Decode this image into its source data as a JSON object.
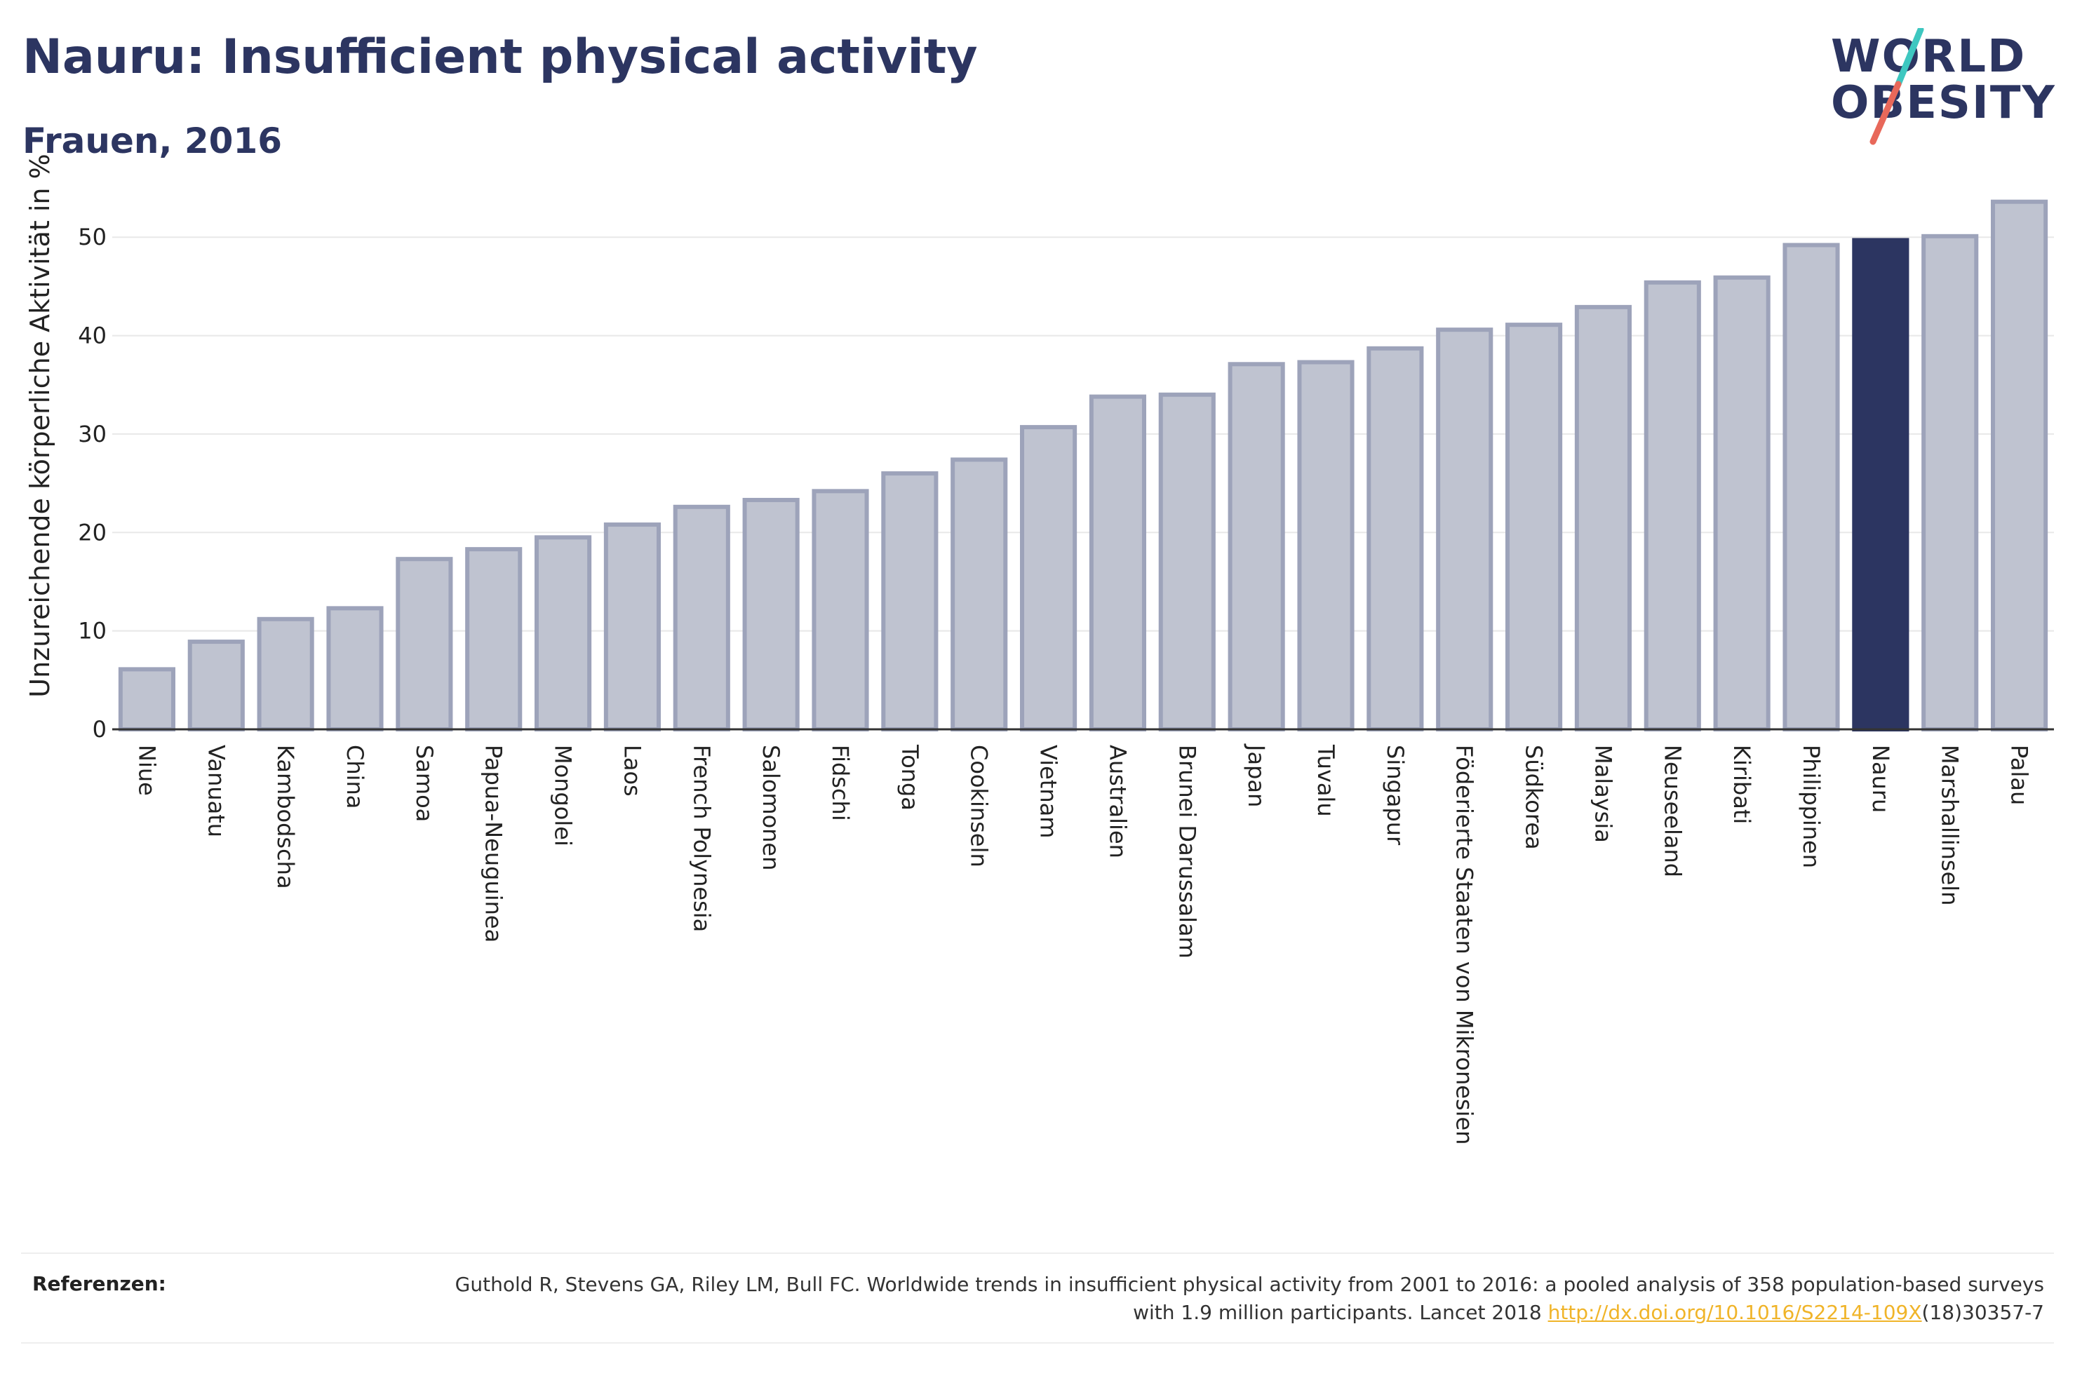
{
  "header": {
    "title": "Nauru: Insufficient physical activity",
    "subtitle": "Frauen, 2016"
  },
  "logo": {
    "line1": "WORLD",
    "line2": "OBESITY",
    "slash_colors": [
      "#3ec7c0",
      "#e8685a"
    ]
  },
  "colors": {
    "highlight": "#2c3561",
    "bar_fill": "#bfc3d0",
    "bar_stroke": "#9da3ba",
    "grid": "#e8e8e8",
    "axis": "#333333"
  },
  "chart_data": {
    "type": "bar",
    "title": "Nauru: Insufficient physical activity",
    "subtitle": "Frauen, 2016",
    "xlabel": "",
    "ylabel": "Unzureichende körperliche Aktivität in %",
    "ylim": [
      0,
      56
    ],
    "yticks": [
      0,
      10,
      20,
      30,
      40,
      50
    ],
    "grid": true,
    "highlight": "Nauru",
    "categories": [
      "Niue",
      "Vanuatu",
      "Kambodscha",
      "China",
      "Samoa",
      "Papua-Neuguinea",
      "Mongolei",
      "Laos",
      "French Polynesia",
      "Salomonen",
      "Fidschi",
      "Tonga",
      "Cookinseln",
      "Vietnam",
      "Australien",
      "Brunei Darussalam",
      "Japan",
      "Tuvalu",
      "Singapur",
      "Föderierte Staaten von Mikronesien",
      "Südkorea",
      "Malaysia",
      "Neuseeland",
      "Kiribati",
      "Philippinen",
      "Nauru",
      "Marshallinseln",
      "Palau"
    ],
    "values": [
      6.1,
      8.9,
      11.2,
      12.3,
      17.3,
      18.3,
      19.5,
      20.8,
      22.6,
      23.3,
      24.2,
      26.0,
      27.4,
      30.7,
      33.8,
      34.0,
      37.1,
      37.3,
      38.7,
      40.6,
      41.1,
      42.9,
      45.4,
      45.9,
      49.2,
      49.7,
      50.1,
      53.6
    ]
  },
  "references": {
    "label": "Referenzen:",
    "text_before": "Guthold R, Stevens GA, Riley LM, Bull FC. Worldwide trends in insufficient physical activity from 2001 to 2016: a pooled analysis of 358 population-based surveys with 1.9 million participants. Lancet 2018 ",
    "link": "http://dx.doi.org/10.1016/S2214-109X",
    "text_after": "(18)30357-7"
  }
}
